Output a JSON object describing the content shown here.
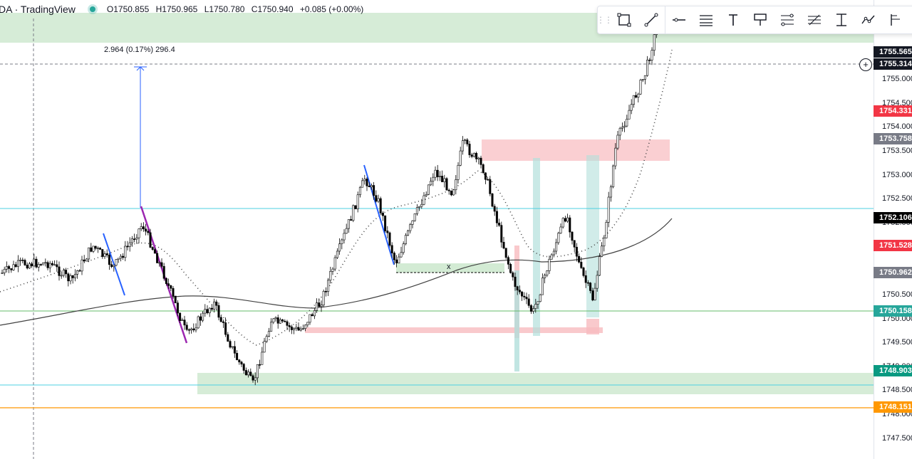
{
  "header": {
    "symbol": "DA · TradingView",
    "open": "O1750.855",
    "high": "H1750.965",
    "low": "L1750.780",
    "close": "C1750.940",
    "change": "+0.085 (+0.00%)"
  },
  "measure_label": "2.964 (0.17%) 296.4",
  "x_marker": "x",
  "toolbar": {
    "tools": [
      "rectangle-icon",
      "trend-line-icon",
      "horizontal-ray-icon",
      "line-style-icon",
      "text-icon",
      "callout-icon",
      "fib-icon",
      "parallel-channel-icon",
      "price-range-icon",
      "path-icon",
      "pitchfork-icon"
    ]
  },
  "price_axis": {
    "currency": "USD",
    "ticks": [
      "1755.000",
      "1754.500",
      "1754.000",
      "1753.500",
      "1753.000",
      "1752.500",
      "1752.000",
      "1751.500",
      "1751.000",
      "1750.500",
      "1750.000",
      "1749.500",
      "1749.000",
      "1748.500",
      "1748.000",
      "1747.500"
    ]
  },
  "price_labels": [
    {
      "text": "1755.565",
      "color": "#131722"
    },
    {
      "text": "1755.314",
      "color": "#131722"
    },
    {
      "text": "1754.331",
      "color": "#f23645"
    },
    {
      "text": "1753.758",
      "color": "#787b86"
    },
    {
      "text": "1752.106",
      "color": "#000000"
    },
    {
      "text": "1751.528",
      "color": "#f23645"
    },
    {
      "text": "1750.962",
      "color": "#787b86"
    },
    {
      "text": "1750.158",
      "color": "#26a69a"
    },
    {
      "text": "1748.903",
      "color": "#089981"
    },
    {
      "text": "1748.151",
      "color": "#ff9800"
    }
  ],
  "chart_data": {
    "type": "candlestick",
    "colors": {
      "up": "#ffffff",
      "down": "#000000",
      "wick": "#000000"
    },
    "y_range": [
      1747.4,
      1755.9
    ]
  }
}
